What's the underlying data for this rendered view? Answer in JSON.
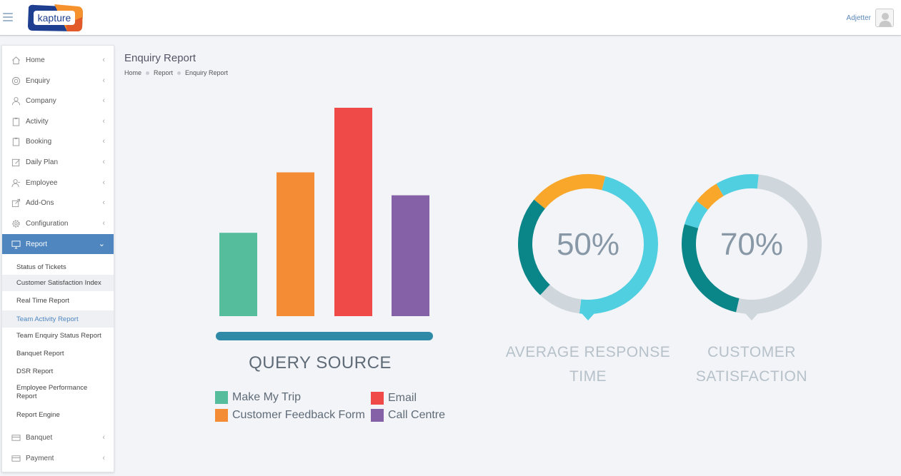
{
  "header": {
    "logo_text": "kapture",
    "user_name": "Adjetter"
  },
  "sidebar": {
    "items": [
      {
        "label": "Home",
        "icon": "home-icon"
      },
      {
        "label": "Enquiry",
        "icon": "lifebuoy-icon"
      },
      {
        "label": "Company",
        "icon": "person-icon"
      },
      {
        "label": "Activity",
        "icon": "clipboard-icon"
      },
      {
        "label": "Booking",
        "icon": "clipboard-icon"
      },
      {
        "label": "Daily Plan",
        "icon": "edit-icon"
      },
      {
        "label": "Employee",
        "icon": "employee-icon"
      },
      {
        "label": "Add-Ons",
        "icon": "external-icon"
      },
      {
        "label": "Configuration",
        "icon": "gear-icon"
      },
      {
        "label": "Report",
        "icon": "monitor-icon"
      }
    ],
    "report_sub": [
      "Status of Tickets",
      "Customer Satisfaction Index",
      "Real Time Report",
      "Team Activity Report",
      "Team Enquiry Status Report",
      "Banquet Report",
      "DSR Report",
      "Employee Performance Report",
      "Report Engine"
    ],
    "bottom_items": [
      {
        "label": "Banquet",
        "icon": "card-icon"
      },
      {
        "label": "Payment",
        "icon": "card-icon"
      }
    ]
  },
  "page": {
    "title": "Enquiry Report",
    "breadcrumb": [
      "Home",
      "Report",
      "Enquiry Report"
    ]
  },
  "chart_data": {
    "type": "bar",
    "title": "QUERY SOURCE",
    "categories": [
      "Make My Trip",
      "Customer Feedback Form",
      "Email",
      "Call Centre"
    ],
    "values": [
      40,
      69,
      100,
      58
    ],
    "colors": [
      "#55bd9b",
      "#f38c34",
      "#ef4a47",
      "#8562a7"
    ],
    "ylim": [
      0,
      100
    ],
    "xlabel": "",
    "ylabel": "",
    "grid": false,
    "legend_position": "bottom"
  },
  "donuts": [
    {
      "percent_label": "50%",
      "label_line1": "AVERAGE RESPONSE",
      "label_line2": "TIME",
      "segments": [
        {
          "color": "#4fcfe0",
          "fraction": 0.48
        },
        {
          "color": "#cfd7dc",
          "fraction": 0.1
        },
        {
          "color": "#0b8688",
          "fraction": 0.24
        },
        {
          "color": "#f8a72b",
          "fraction": 0.18
        }
      ]
    },
    {
      "percent_label": "70%",
      "label_line1": "CUSTOMER",
      "label_line2": "SATISFACTION",
      "segments": [
        {
          "color": "#cfd7dc",
          "fraction": 0.52
        },
        {
          "color": "#0b8688",
          "fraction": 0.26
        },
        {
          "color": "#4fcfe0",
          "fraction": 0.06
        },
        {
          "color": "#f8a72b",
          "fraction": 0.06
        },
        {
          "color": "#4fcfe0",
          "fraction": 0.1
        }
      ]
    }
  ]
}
